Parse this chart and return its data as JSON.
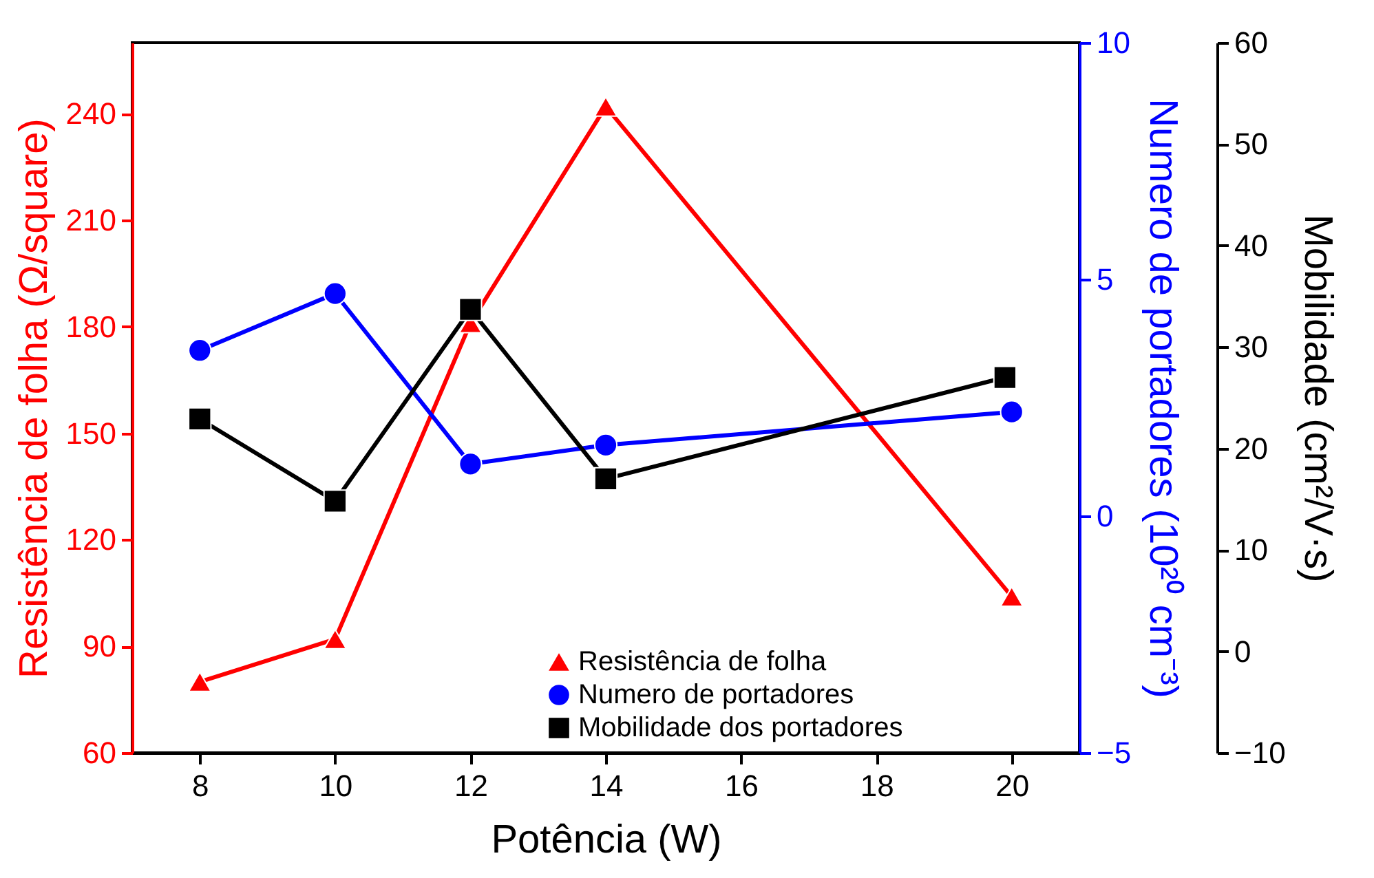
{
  "chart_data": {
    "type": "line",
    "xlabel": "Potência (W)",
    "ylabel": "Resistência de folha (Ω/square)",
    "y2label": "Numero de portadores (10²⁰ cm⁻³)",
    "y3label": "Mobilidade  (cm²/V·s)",
    "xlim": [
      7,
      21
    ],
    "xticks": [
      8,
      10,
      12,
      14,
      16,
      18,
      20
    ],
    "ylim": [
      60,
      260
    ],
    "yticks": [
      60,
      90,
      120,
      150,
      180,
      210,
      240
    ],
    "y2lim": [
      -5,
      10
    ],
    "y2ticks": [
      -5,
      0,
      5,
      10
    ],
    "y3lim": [
      -10,
      60
    ],
    "y3ticks": [
      -10,
      0,
      10,
      20,
      30,
      40,
      50,
      60
    ],
    "grid": false,
    "legend": "bottom right",
    "line_style": "solid",
    "series": [
      {
        "name": "Resistência de folha",
        "color": "#ff0000",
        "marker": "triangle",
        "axis": "y",
        "x": [
          8,
          10,
          12,
          14,
          20
        ],
        "values": [
          80,
          92,
          181,
          242,
          104
        ]
      },
      {
        "name": "Numero de portadores",
        "color": "#0000ff",
        "marker": "circle",
        "axis": "y2",
        "x": [
          8,
          10,
          12,
          14,
          20
        ],
        "values": [
          3.5,
          4.7,
          1.1,
          1.5,
          2.2
        ]
      },
      {
        "name": "Mobilidade dos portadores",
        "color": "#000000",
        "marker": "square",
        "axis": "y3",
        "x": [
          8,
          10,
          12,
          14,
          19.9
        ],
        "values": [
          22.9,
          14.8,
          33.7,
          17,
          27
        ]
      }
    ]
  }
}
